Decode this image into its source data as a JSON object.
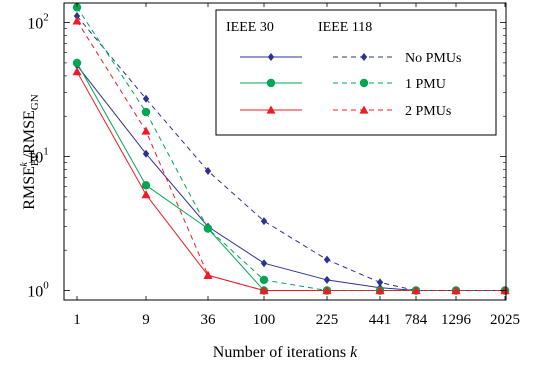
{
  "chart_data": {
    "type": "line",
    "title": "",
    "xlabel": "Number of iterations k",
    "ylabel": "RMSE_BP^k / RMSE_GN",
    "y_scale": "log",
    "ylim": [
      0.85,
      140
    ],
    "x_scale": "categorical",
    "categories": [
      "1",
      "9",
      "36",
      "100",
      "225",
      "441",
      "784",
      "1296",
      "2025"
    ],
    "y_ticks": [
      {
        "value": 1,
        "base": "10",
        "exp": "0"
      },
      {
        "value": 10,
        "base": "10",
        "exp": "1"
      },
      {
        "value": 100,
        "base": "10",
        "exp": "2"
      }
    ],
    "legend": {
      "placement": "top-right",
      "col_headers": [
        "IEEE 30",
        "IEEE 118"
      ],
      "row_labels": [
        "No PMUs",
        "1 PMU",
        "2 PMUs"
      ]
    },
    "series": [
      {
        "id": "s30-none",
        "color": "#2e3192",
        "marker": "diamond",
        "dashed": false,
        "values": [
          48,
          10.5,
          3.0,
          1.6,
          1.2,
          1.05,
          1.0,
          1.0,
          1.0
        ]
      },
      {
        "id": "s30-1pmu",
        "color": "#00a651",
        "marker": "circle",
        "dashed": false,
        "values": [
          50,
          6.1,
          2.9,
          1.0,
          1.0,
          1.0,
          1.0,
          1.0,
          1.0
        ]
      },
      {
        "id": "s30-2pmu",
        "color": "#ed1c24",
        "marker": "triangle",
        "dashed": false,
        "values": [
          43,
          5.2,
          1.3,
          1.0,
          1.0,
          1.0,
          1.0,
          1.0,
          1.0
        ]
      },
      {
        "id": "s118-none",
        "color": "#2e3192",
        "marker": "diamond",
        "dashed": true,
        "values": [
          112,
          27,
          7.8,
          3.3,
          1.7,
          1.15,
          1.0,
          1.0,
          1.0
        ]
      },
      {
        "id": "s118-1pmu",
        "color": "#00a651",
        "marker": "circle",
        "dashed": true,
        "values": [
          130,
          21.5,
          2.9,
          1.2,
          1.0,
          1.0,
          1.0,
          1.0,
          1.0
        ]
      },
      {
        "id": "s118-2pmu",
        "color": "#ed1c24",
        "marker": "triangle",
        "dashed": true,
        "values": [
          103,
          15.5,
          1.3,
          1.0,
          1.0,
          1.0,
          1.0,
          1.0,
          1.0
        ]
      }
    ]
  }
}
